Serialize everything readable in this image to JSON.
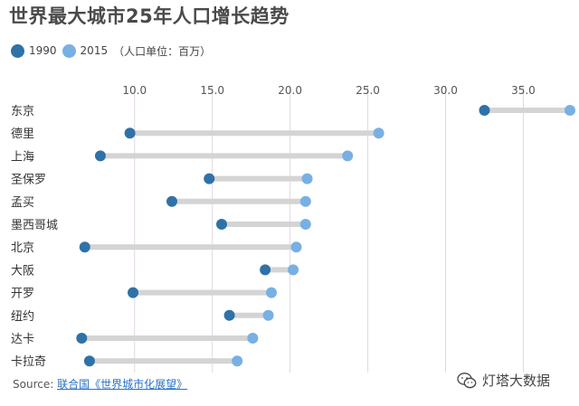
{
  "title": "世界最大城市25年人口增长趋势",
  "legend": {
    "items": [
      {
        "label": "1990",
        "color": "#2f72a8"
      },
      {
        "label": "2015",
        "color": "#78b0e4"
      }
    ],
    "unit_note": "（人口单位：百万）"
  },
  "source": {
    "prefix": "Source: ",
    "link_text": "联合国《世界城市化展望》"
  },
  "watermark": {
    "text": "灯塔大数据"
  },
  "colors": {
    "dot_1990": "#2f72a8",
    "dot_2015": "#78b0e4",
    "connector": "#d4d4d4",
    "gridline": "#e3d6e6"
  },
  "chart_data": {
    "type": "dumbbell",
    "series": [
      {
        "name": "1990"
      },
      {
        "name": "2015"
      }
    ],
    "categories": [
      "东京",
      "德里",
      "上海",
      "圣保罗",
      "孟买",
      "墨西哥城",
      "北京",
      "大阪",
      "开罗",
      "纽约",
      "达卡",
      "卡拉奇"
    ],
    "values_1990": [
      32.5,
      9.7,
      7.8,
      14.8,
      12.4,
      15.6,
      6.8,
      18.4,
      9.9,
      16.1,
      6.6,
      7.1
    ],
    "values_2015": [
      38.0,
      25.7,
      23.7,
      21.1,
      21.0,
      21.0,
      20.4,
      20.2,
      18.8,
      18.6,
      17.6,
      16.6
    ],
    "xticks": [
      "10.0",
      "15.0",
      "20.0",
      "25.0",
      "30.0",
      "35.0"
    ],
    "xtick_values": [
      10,
      15,
      20,
      25,
      30,
      35
    ],
    "xlim": [
      6.0,
      38.0
    ],
    "grid": true,
    "legend_position": "top-left"
  }
}
